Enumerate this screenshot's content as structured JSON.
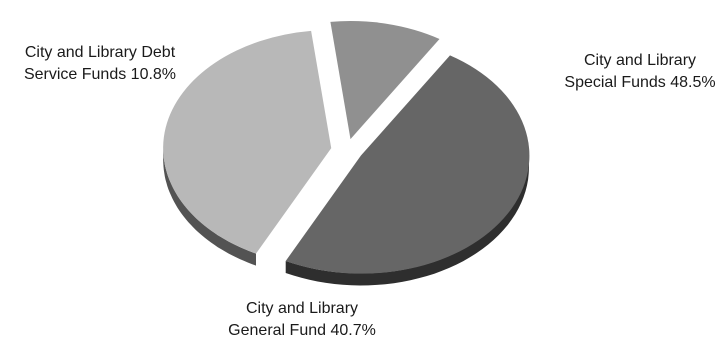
{
  "chart_data": {
    "type": "pie",
    "style": "3d-exploded",
    "title": "",
    "slices": [
      {
        "line1": "City and Library",
        "line2": "Special Funds 48.5%",
        "value": 48.5,
        "color": "#666666"
      },
      {
        "line1": "City and Library",
        "line2": "General Fund 40.7%",
        "value": 40.7,
        "color": "#b8b8b8"
      },
      {
        "line1": "City and Library Debt",
        "line2": "Service Funds 10.8%",
        "value": 10.8,
        "color": "#909090"
      }
    ]
  }
}
